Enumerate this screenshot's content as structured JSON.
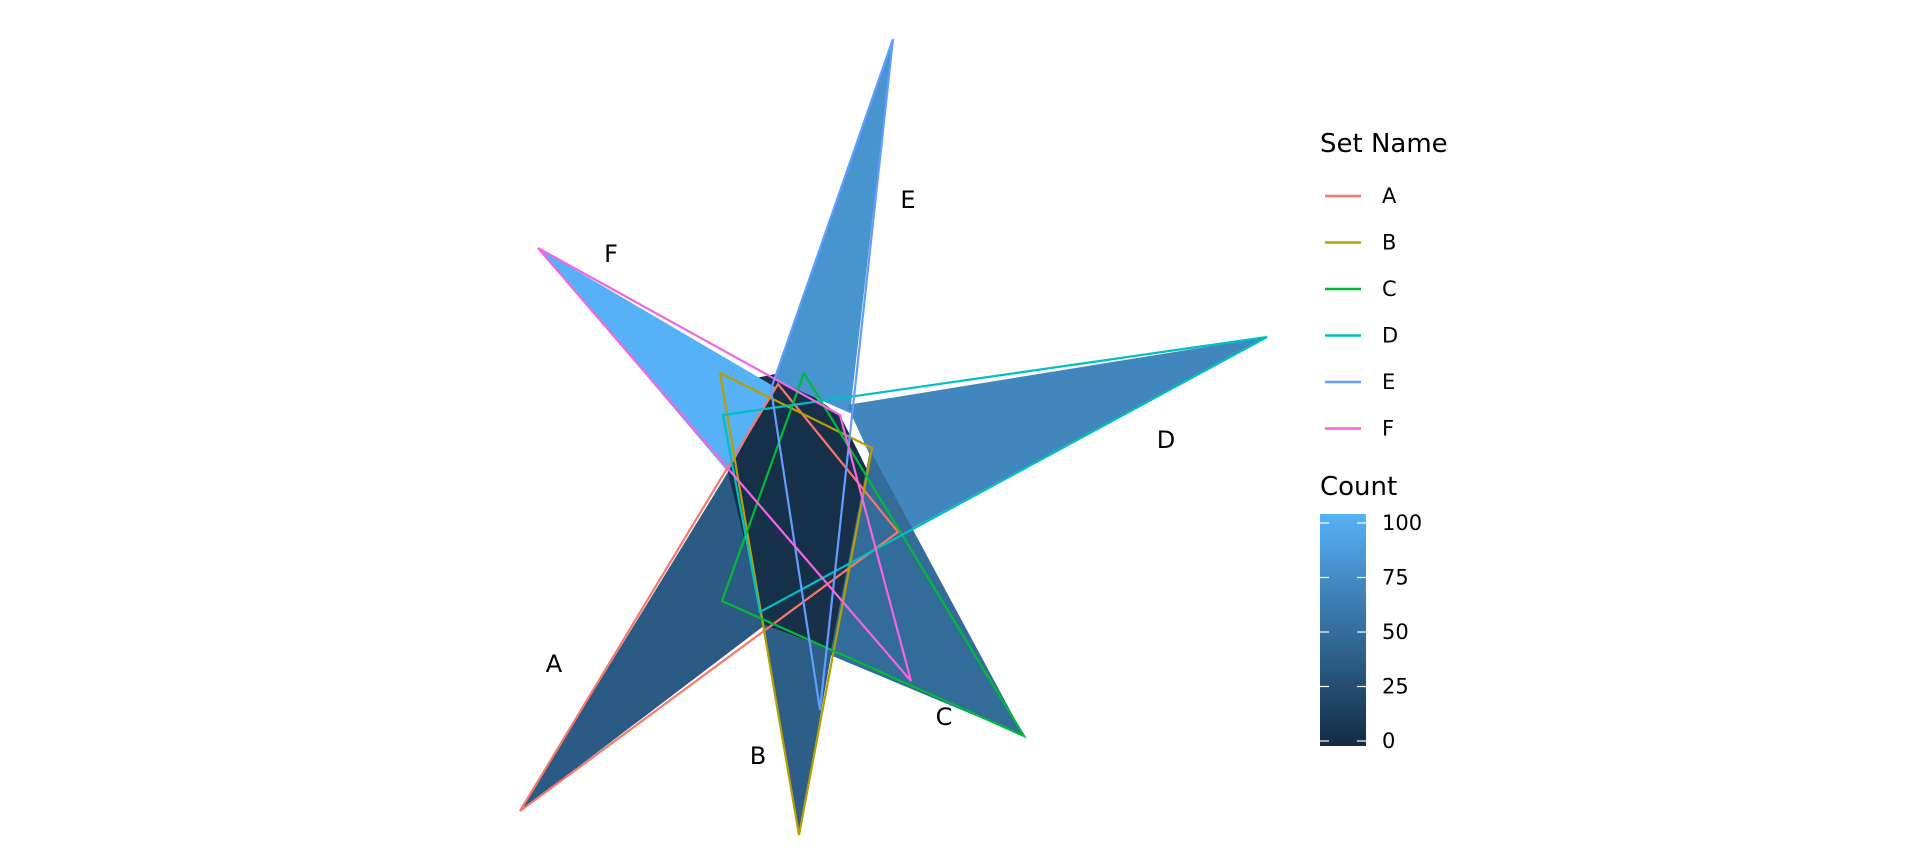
{
  "chart_data": {
    "type": "venn",
    "title": "",
    "sets": [
      {
        "name": "A",
        "color": "#F8766D"
      },
      {
        "name": "B",
        "color": "#B79F00"
      },
      {
        "name": "C",
        "color": "#00BA38"
      },
      {
        "name": "D",
        "color": "#00BFC4"
      },
      {
        "name": "E",
        "color": "#619CFF"
      },
      {
        "name": "F",
        "color": "#F564E3"
      }
    ],
    "legend_set": {
      "title": "Set Name",
      "placement": "right"
    },
    "legend_count": {
      "title": "Count",
      "min": 0,
      "max": 100,
      "ticks": [
        0,
        25,
        50,
        75,
        100
      ],
      "low_color": "#132B43",
      "high_color": "#56B1F7"
    },
    "regions": [
      {
        "sets": [
          "F"
        ],
        "count": 100
      },
      {
        "sets": [
          "E"
        ],
        "count": 78
      },
      {
        "sets": [
          "D"
        ],
        "count": 68
      },
      {
        "sets": [
          "C"
        ],
        "count": 48
      },
      {
        "sets": [
          "B"
        ],
        "count": 38
      },
      {
        "sets": [
          "A"
        ],
        "count": 36
      },
      {
        "sets": [
          "A",
          "B",
          "C",
          "D",
          "E",
          "F"
        ],
        "count": 4
      }
    ]
  }
}
